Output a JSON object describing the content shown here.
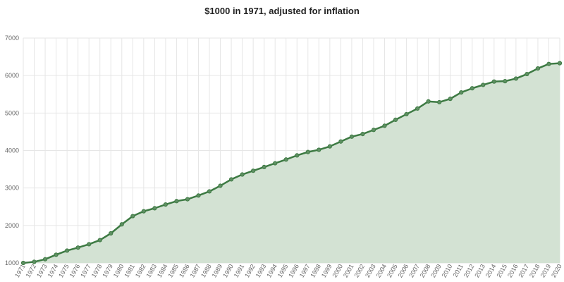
{
  "chart_data": {
    "type": "area",
    "title": "$1000 in 1971, adjusted for inflation",
    "xlabel": "",
    "ylabel": "",
    "ylim": [
      1000,
      7000
    ],
    "yticks": [
      1000,
      2000,
      3000,
      4000,
      5000,
      6000,
      7000
    ],
    "grid": true,
    "legend": "none",
    "colors": {
      "line": "#3d7a43",
      "fill": "#d3e2d3",
      "point": "#5e8f62"
    },
    "x": [
      1971,
      1972,
      1973,
      1974,
      1975,
      1976,
      1977,
      1978,
      1979,
      1980,
      1981,
      1982,
      1983,
      1984,
      1985,
      1986,
      1987,
      1988,
      1989,
      1990,
      1991,
      1992,
      1993,
      1994,
      1995,
      1996,
      1997,
      1998,
      1999,
      2000,
      2001,
      2002,
      2003,
      2004,
      2005,
      2006,
      2007,
      2008,
      2009,
      2010,
      2011,
      2012,
      2013,
      2014,
      2015,
      2016,
      2017,
      2018,
      2019,
      2020
    ],
    "series": [
      {
        "values": [
          1000,
          1030,
          1100,
          1220,
          1330,
          1410,
          1500,
          1610,
          1790,
          2030,
          2250,
          2380,
          2460,
          2560,
          2650,
          2700,
          2800,
          2910,
          3060,
          3230,
          3360,
          3460,
          3560,
          3660,
          3760,
          3870,
          3960,
          4020,
          4110,
          4240,
          4370,
          4440,
          4550,
          4660,
          4820,
          4970,
          5120,
          5310,
          5290,
          5380,
          5550,
          5660,
          5750,
          5840,
          5850,
          5920,
          6040,
          6190,
          6310,
          6330
        ]
      }
    ]
  }
}
